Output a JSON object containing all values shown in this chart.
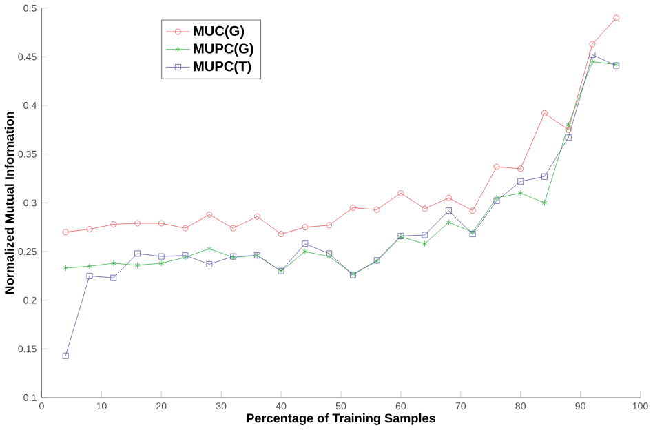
{
  "chart_data": {
    "type": "line",
    "xlabel": "Percentage of Training Samples",
    "ylabel": "Normalized Mutual Information",
    "x": [
      4,
      8,
      12,
      16,
      20,
      24,
      28,
      32,
      36,
      40,
      44,
      48,
      52,
      56,
      60,
      64,
      68,
      72,
      76,
      80,
      84,
      88,
      92,
      96
    ],
    "series": [
      {
        "name": "MUC(G)",
        "color": "#e8595a",
        "marker": "circle",
        "values": [
          0.27,
          0.273,
          0.278,
          0.279,
          0.279,
          0.274,
          0.288,
          0.274,
          0.286,
          0.268,
          0.275,
          0.277,
          0.295,
          0.293,
          0.31,
          0.294,
          0.305,
          0.292,
          0.337,
          0.335,
          0.392,
          0.375,
          0.463,
          0.49
        ]
      },
      {
        "name": "MUPC(G)",
        "color": "#3cb04a",
        "marker": "cross",
        "values": [
          0.233,
          0.235,
          0.238,
          0.236,
          0.238,
          0.244,
          0.253,
          0.244,
          0.246,
          0.23,
          0.25,
          0.245,
          0.227,
          0.24,
          0.265,
          0.258,
          0.28,
          0.27,
          0.305,
          0.31,
          0.3,
          0.38,
          0.445,
          0.442
        ]
      },
      {
        "name": "MUPC(T)",
        "color": "#5a5aa8",
        "marker": "square",
        "values": [
          0.143,
          0.225,
          0.223,
          0.248,
          0.245,
          0.246,
          0.237,
          0.245,
          0.246,
          0.23,
          0.258,
          0.248,
          0.226,
          0.241,
          0.266,
          0.267,
          0.292,
          0.268,
          0.302,
          0.322,
          0.327,
          0.367,
          0.452,
          0.441
        ]
      }
    ],
    "xlim": [
      0,
      100
    ],
    "xticks": [
      0,
      10,
      20,
      30,
      40,
      50,
      60,
      70,
      80,
      90,
      100
    ],
    "ylim": [
      0.1,
      0.5
    ],
    "yticks": [
      0.1,
      0.15,
      0.2,
      0.25,
      0.3,
      0.35,
      0.4,
      0.45,
      0.5
    ],
    "grid": false,
    "legend": "top left",
    "line_style": "solid"
  }
}
